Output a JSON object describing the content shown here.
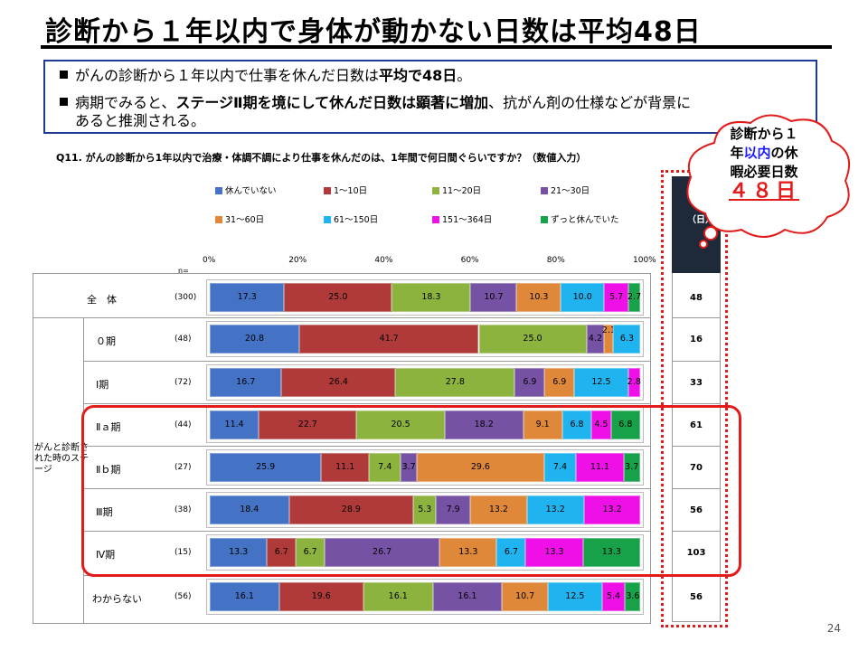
{
  "title": "診断から１年以内で身体が動かない日数は平均48日",
  "summary": {
    "bullet1": {
      "pre": "がんの診断から１年以内で仕事を休んだ日数は",
      "bold": "平均で48日",
      "post": "。"
    },
    "bullet2": {
      "pre": "病期でみると、",
      "bold": "ステージⅡ期を境にして休んだ日数は顕著に増加",
      "post": "、抗がん剤の仕様などが背景に"
    },
    "bullet2_cont": "あると推測される。"
  },
  "question": "Q11. がんの診断から1年以内で治療・体調不調により仕事を休んだのは、1年間で何日間ぐらいですか？（数値入力）",
  "callout": {
    "line1": "診断から１",
    "line2_pre": "年",
    "line2_blue": "以内",
    "line2_post": "の休",
    "line3": "暇必要日数",
    "value": "４８日"
  },
  "avg_header": "（日）",
  "n_label": "n=",
  "group_label": "がんと診断された時のステージ",
  "page_number": "24",
  "chart_data": {
    "type": "bar",
    "orientation": "horizontal",
    "stacked": true,
    "percent": true,
    "xlim": [
      0,
      100
    ],
    "x_ticks": [
      "0%",
      "20%",
      "40%",
      "60%",
      "80%",
      "100%"
    ],
    "legend_position": "top",
    "categories": [
      "全　体",
      "０期",
      "Ⅰ期",
      "Ⅱａ期",
      "Ⅱｂ期",
      "Ⅲ期",
      "Ⅳ期",
      "わからない"
    ],
    "n": [
      "(300)",
      "(48)",
      "(72)",
      "(44)",
      "(27)",
      "(38)",
      "(15)",
      "(56)"
    ],
    "average_days": [
      "48",
      "16",
      "33",
      "61",
      "70",
      "56",
      "103",
      "56"
    ],
    "series": [
      {
        "name": "休んでいない",
        "color": "#4472c4",
        "values": [
          17.3,
          20.8,
          16.7,
          11.4,
          25.9,
          18.4,
          13.3,
          16.1
        ]
      },
      {
        "name": "1～10日",
        "color": "#b03a3a",
        "values": [
          25.0,
          41.7,
          26.4,
          22.7,
          11.1,
          28.9,
          6.7,
          19.6
        ]
      },
      {
        "name": "11～20日",
        "color": "#8db33f",
        "values": [
          18.3,
          25.0,
          27.8,
          20.5,
          7.4,
          5.3,
          6.7,
          16.1
        ]
      },
      {
        "name": "21～30日",
        "color": "#7552a3",
        "values": [
          10.7,
          4.2,
          6.9,
          18.2,
          3.7,
          7.9,
          26.7,
          16.1
        ]
      },
      {
        "name": "31～60日",
        "color": "#e0883a",
        "values": [
          10.3,
          2.1,
          6.9,
          9.1,
          29.6,
          13.2,
          13.3,
          10.7
        ]
      },
      {
        "name": "61～150日",
        "color": "#1fb4ef",
        "values": [
          10.0,
          6.3,
          12.5,
          6.8,
          7.4,
          13.2,
          6.7,
          12.5
        ]
      },
      {
        "name": "151～364日",
        "color": "#ee10e6",
        "values": [
          5.7,
          0,
          2.8,
          4.5,
          11.1,
          13.2,
          13.3,
          5.4
        ]
      },
      {
        "name": "ずっと休んでいた",
        "color": "#17a24a",
        "values": [
          2.7,
          0,
          0,
          6.8,
          3.7,
          0,
          13.3,
          3.6
        ]
      }
    ],
    "value_labels": [
      [
        "17.3",
        "25.0",
        "18.3",
        "10.7",
        "10.3",
        "10.0",
        "5.7",
        "2.7"
      ],
      [
        "20.8",
        "41.7",
        "25.0",
        "4.2",
        "2.1",
        "6.3",
        "",
        ""
      ],
      [
        "16.7",
        "26.4",
        "27.8",
        "6.9",
        "6.9",
        "12.5",
        "2.8",
        ""
      ],
      [
        "11.4",
        "22.7",
        "20.5",
        "18.2",
        "9.1",
        "6.8",
        "4.5",
        "6.8"
      ],
      [
        "25.9",
        "11.1",
        "7.4",
        "3.7",
        "29.6",
        "7.4",
        "11.1",
        "3.7"
      ],
      [
        "18.4",
        "28.9",
        "5.3",
        "7.9",
        "13.2",
        "13.2",
        "13.2",
        ""
      ],
      [
        "13.3",
        "6.7",
        "6.7",
        "26.7",
        "13.3",
        "6.7",
        "13.3",
        "13.3"
      ],
      [
        "16.1",
        "19.6",
        "16.1",
        "16.1",
        "10.7",
        "12.5",
        "5.4",
        "3.6"
      ]
    ]
  }
}
